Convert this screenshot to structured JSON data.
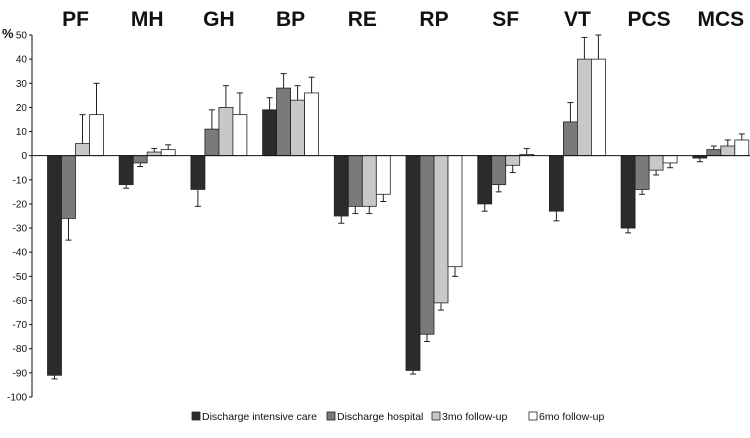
{
  "chart_data": {
    "type": "bar",
    "title": "",
    "xlabel": "",
    "ylabel": "%",
    "ylim": [
      -100,
      50
    ],
    "yticks": [
      50,
      40,
      30,
      20,
      10,
      0,
      -10,
      -20,
      -30,
      -40,
      -50,
      -60,
      -70,
      -80,
      -90,
      -100
    ],
    "grid": false,
    "legend_position": "bottom",
    "error_bars": true,
    "categories": [
      "PF",
      "MH",
      "GH",
      "BP",
      "RE",
      "RP",
      "SF",
      "VT",
      "PCS",
      "MCS"
    ],
    "series": [
      {
        "name": "Discharge intensive care",
        "color": "#2b2b2b",
        "values": [
          -91,
          -12,
          -14,
          19,
          -25,
          -89,
          -20,
          -23,
          -30,
          -1
        ],
        "errors": [
          1.5,
          1.5,
          7,
          5,
          3,
          1.5,
          3,
          4,
          2,
          1.5
        ]
      },
      {
        "name": "Discharge hospital",
        "color": "#7a7a7a",
        "values": [
          -26,
          -3,
          11,
          28,
          -21,
          -74,
          -12,
          14,
          -14,
          2.5
        ],
        "errors": [
          9,
          1.5,
          8,
          6,
          3,
          3,
          3,
          8,
          2,
          1.5
        ]
      },
      {
        "name": "3mo follow-up",
        "color": "#c8c8c8",
        "values": [
          5,
          1.5,
          20,
          23,
          -21,
          -61,
          -4,
          40,
          -6,
          4
        ],
        "errors": [
          12,
          1.5,
          9,
          6,
          3,
          3,
          3,
          9,
          2,
          2.5
        ]
      },
      {
        "name": "6mo follow-up",
        "color": "#ffffff",
        "values": [
          17,
          2.5,
          17,
          26,
          -16,
          -46,
          0.5,
          40,
          -3,
          6.5
        ],
        "errors": [
          13,
          2,
          9,
          6.5,
          3,
          4,
          2.5,
          10,
          2,
          2.5
        ]
      }
    ]
  }
}
